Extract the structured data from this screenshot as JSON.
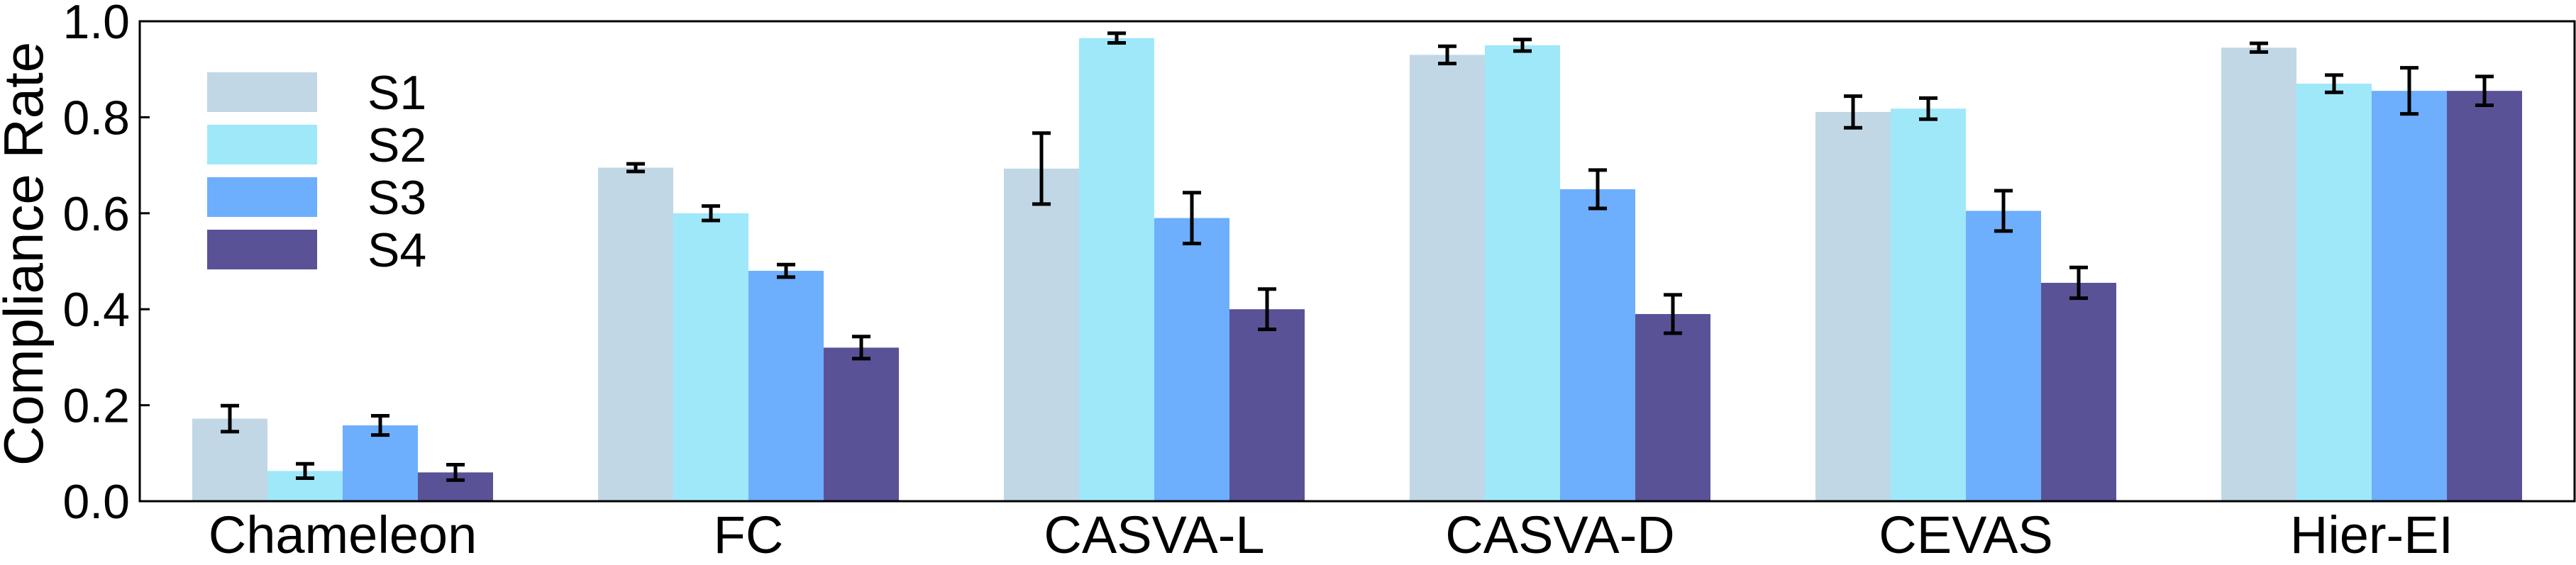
{
  "chart_data": {
    "type": "bar",
    "title": "",
    "xlabel": "",
    "ylabel": "Compliance Rate",
    "ylim": [
      0,
      1.0
    ],
    "yticks": [
      "0.0",
      "0.2",
      "0.4",
      "0.6",
      "0.8",
      "1.0"
    ],
    "ytick_values": [
      0.0,
      0.2,
      0.4,
      0.6,
      0.8,
      1.0
    ],
    "grid": false,
    "legend_position": "top-left",
    "categories": [
      "Chameleon",
      "FC",
      "CASVA-L",
      "CASVA-D",
      "CEVAS",
      "Hier-EI"
    ],
    "series": [
      {
        "name": "S1",
        "color": "#C1D7E6",
        "values": [
          0.172,
          0.695,
          0.693,
          0.93,
          0.811,
          0.945
        ],
        "errors": [
          0.027,
          0.008,
          0.074,
          0.018,
          0.033,
          0.009
        ]
      },
      {
        "name": "S2",
        "color": "#9FE8FA",
        "values": [
          0.063,
          0.6,
          0.965,
          0.95,
          0.818,
          0.87
        ],
        "errors": [
          0.015,
          0.015,
          0.01,
          0.012,
          0.022,
          0.018
        ]
      },
      {
        "name": "S3",
        "color": "#6DAEFD",
        "values": [
          0.158,
          0.48,
          0.59,
          0.65,
          0.605,
          0.855
        ],
        "errors": [
          0.02,
          0.013,
          0.053,
          0.04,
          0.042,
          0.048
        ]
      },
      {
        "name": "S4",
        "color": "#5A5297",
        "values": [
          0.06,
          0.32,
          0.4,
          0.39,
          0.455,
          0.855
        ],
        "errors": [
          0.016,
          0.023,
          0.042,
          0.04,
          0.032,
          0.03
        ]
      }
    ]
  }
}
